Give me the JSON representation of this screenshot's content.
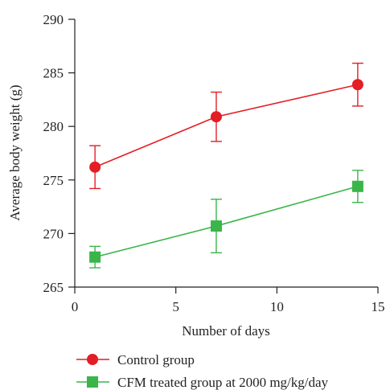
{
  "chart_data": {
    "type": "line",
    "xlabel": "Number of days",
    "ylabel": "Average body weight (g)",
    "xlim": [
      0,
      15
    ],
    "ylim": [
      265,
      290
    ],
    "x_ticks": [
      0,
      5,
      10,
      15
    ],
    "y_ticks": [
      265,
      270,
      275,
      280,
      285,
      290
    ],
    "grid": false,
    "legend_position": "bottom",
    "series": [
      {
        "name": "Control group",
        "color": "#e31e24",
        "marker": "circle",
        "x": [
          1,
          7,
          14
        ],
        "y": [
          276.2,
          280.9,
          283.9
        ],
        "error": [
          2.0,
          2.3,
          2.0
        ]
      },
      {
        "name": "CFM treated group at 2000 mg/kg/day",
        "color": "#39b54a",
        "marker": "square",
        "x": [
          1,
          7,
          14
        ],
        "y": [
          267.8,
          270.7,
          274.4
        ],
        "error": [
          1.0,
          2.5,
          1.5
        ]
      }
    ]
  }
}
